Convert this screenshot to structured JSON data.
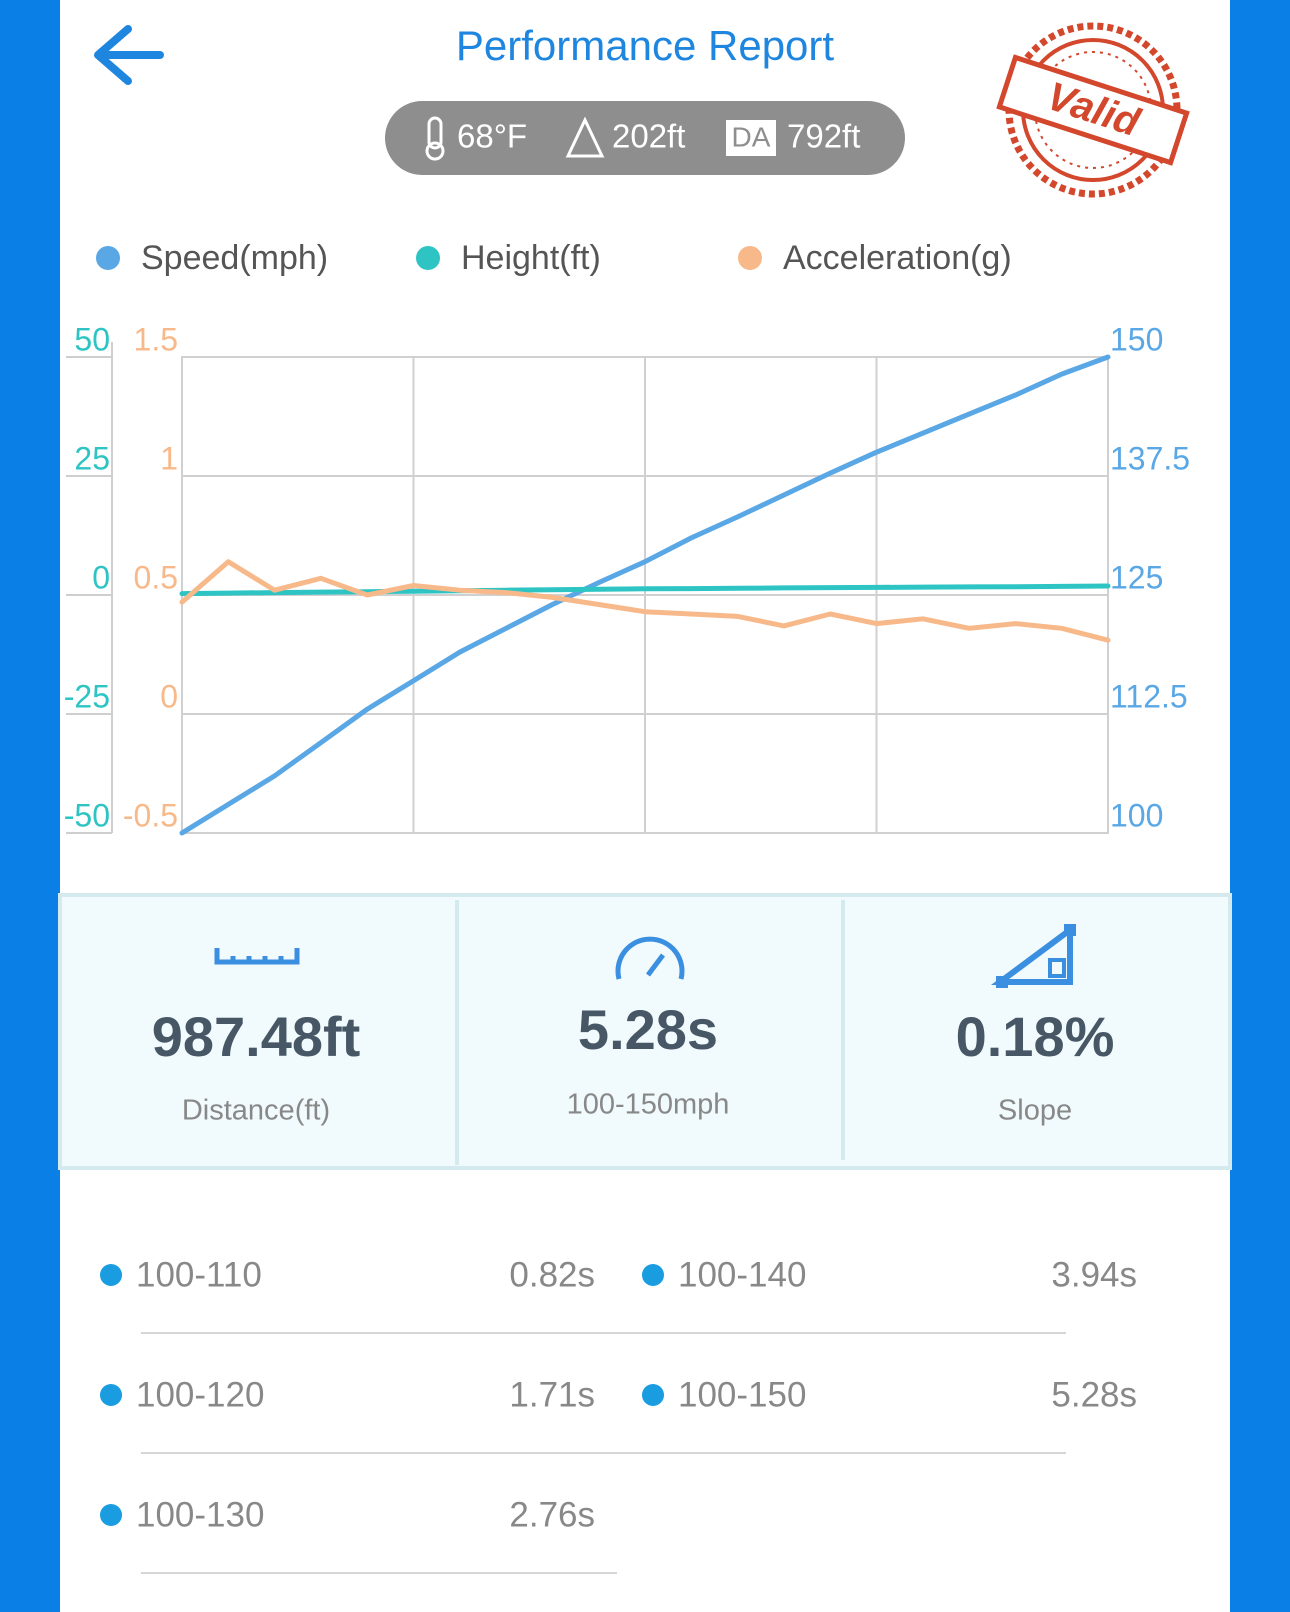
{
  "header": {
    "title": "Performance Report"
  },
  "conditions": {
    "temperature": "68°F",
    "elevation": "202ft",
    "density_altitude_label": "DA",
    "density_altitude": "792ft"
  },
  "stamp": "Valid",
  "chart_data": {
    "type": "line",
    "series": [
      {
        "name": "Speed(mph)",
        "color": "#5aa7e6",
        "axis": "y2",
        "values": [
          100,
          103,
          106,
          109.5,
          113,
          116,
          119,
          121.5,
          124,
          126.3,
          128.5,
          131,
          133.2,
          135.5,
          137.8,
          140,
          142,
          144,
          146,
          148.2,
          150
        ]
      },
      {
        "name": "Height(ft)",
        "color": "#2ec4c4",
        "values": [
          0.3,
          0.4,
          0.5,
          0.6,
          0.7,
          0.8,
          0.9,
          1,
          1.1,
          1.2,
          1.3,
          1.35,
          1.4,
          1.5,
          1.55,
          1.6,
          1.65,
          1.7,
          1.75,
          1.8,
          1.9
        ]
      },
      {
        "name": "Acceleration(g)",
        "color": "#f8b98a",
        "axis": "y3",
        "values": [
          0.47,
          0.64,
          0.52,
          0.57,
          0.5,
          0.54,
          0.52,
          0.51,
          0.49,
          0.46,
          0.43,
          0.42,
          0.41,
          0.37,
          0.42,
          0.38,
          0.4,
          0.36,
          0.38,
          0.36,
          0.31
        ]
      }
    ],
    "ylim": [
      -50,
      50
    ],
    "yticks": [
      -50,
      -25,
      0,
      25,
      50
    ],
    "y2lim": [
      100,
      150
    ],
    "y2ticks": [
      100,
      112.5,
      125,
      137.5,
      150
    ],
    "y3lim": [
      -0.5,
      1.5
    ],
    "y3ticks": [
      -0.5,
      0,
      0.5,
      1,
      1.5
    ],
    "grid": true
  },
  "stats": [
    {
      "value": "987.48ft",
      "label": "Distance(ft)"
    },
    {
      "value": "5.28s",
      "label": "100-150mph"
    },
    {
      "value": "0.18%",
      "label": "Slope"
    }
  ],
  "splits": [
    {
      "range": "100-110",
      "time": "0.82s"
    },
    {
      "range": "100-120",
      "time": "1.71s"
    },
    {
      "range": "100-130",
      "time": "2.76s"
    },
    {
      "range": "100-140",
      "time": "3.94s"
    },
    {
      "range": "100-150",
      "time": "5.28s"
    }
  ]
}
